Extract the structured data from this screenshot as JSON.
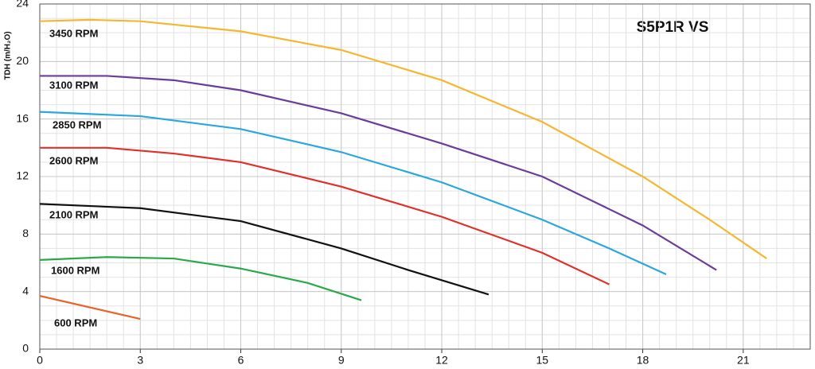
{
  "chart_data": {
    "type": "line",
    "title": "S5P1R VS",
    "y_label": "TDH (m/H₂O)",
    "xlim": [
      0,
      23
    ],
    "ylim": [
      0,
      24
    ],
    "xticks": [
      0,
      3,
      6,
      9,
      12,
      15,
      18,
      21
    ],
    "yticks": [
      0,
      4,
      8,
      12,
      16,
      20,
      24
    ],
    "grid": true,
    "x_minor_step": 0.5,
    "y_minor_step": 1,
    "series": [
      {
        "name": "3450 RPM",
        "color": "#f5b731",
        "x": [
          0,
          1.5,
          3,
          6,
          9,
          12,
          15,
          18,
          20,
          21.7
        ],
        "values": [
          22.8,
          22.9,
          22.8,
          22.1,
          20.8,
          18.7,
          15.8,
          12.0,
          9.0,
          6.3
        ]
      },
      {
        "name": "3100 RPM",
        "color": "#6a3d9a",
        "x": [
          0,
          2,
          4,
          6,
          9,
          12,
          15,
          18,
          20.2
        ],
        "values": [
          19.0,
          19.0,
          18.7,
          18.0,
          16.4,
          14.3,
          12.0,
          8.6,
          5.5
        ]
      },
      {
        "name": "2850 RPM",
        "color": "#2aa7dd",
        "x": [
          0,
          3,
          6,
          9,
          12,
          15,
          17,
          18.7
        ],
        "values": [
          16.5,
          16.2,
          15.3,
          13.7,
          11.6,
          9.0,
          7.0,
          5.2
        ]
      },
      {
        "name": "2600 RPM",
        "color": "#e0302a",
        "x": [
          0,
          2,
          4,
          6,
          9,
          12,
          15,
          17
        ],
        "values": [
          14.0,
          14.0,
          13.6,
          13.0,
          11.3,
          9.2,
          6.7,
          4.5
        ]
      },
      {
        "name": "2100 RPM",
        "color": "#111111",
        "x": [
          0,
          3,
          6,
          9,
          11,
          13.4
        ],
        "values": [
          10.1,
          9.8,
          8.9,
          7.0,
          5.5,
          3.8
        ]
      },
      {
        "name": "1600 RPM",
        "color": "#2aa84a",
        "x": [
          0,
          2,
          4,
          6,
          8,
          9.6
        ],
        "values": [
          6.2,
          6.4,
          6.3,
          5.6,
          4.6,
          3.4
        ]
      },
      {
        "name": "600 RPM",
        "color": "#e8622a",
        "x": [
          0,
          3
        ],
        "values": [
          3.7,
          2.1
        ]
      }
    ]
  }
}
